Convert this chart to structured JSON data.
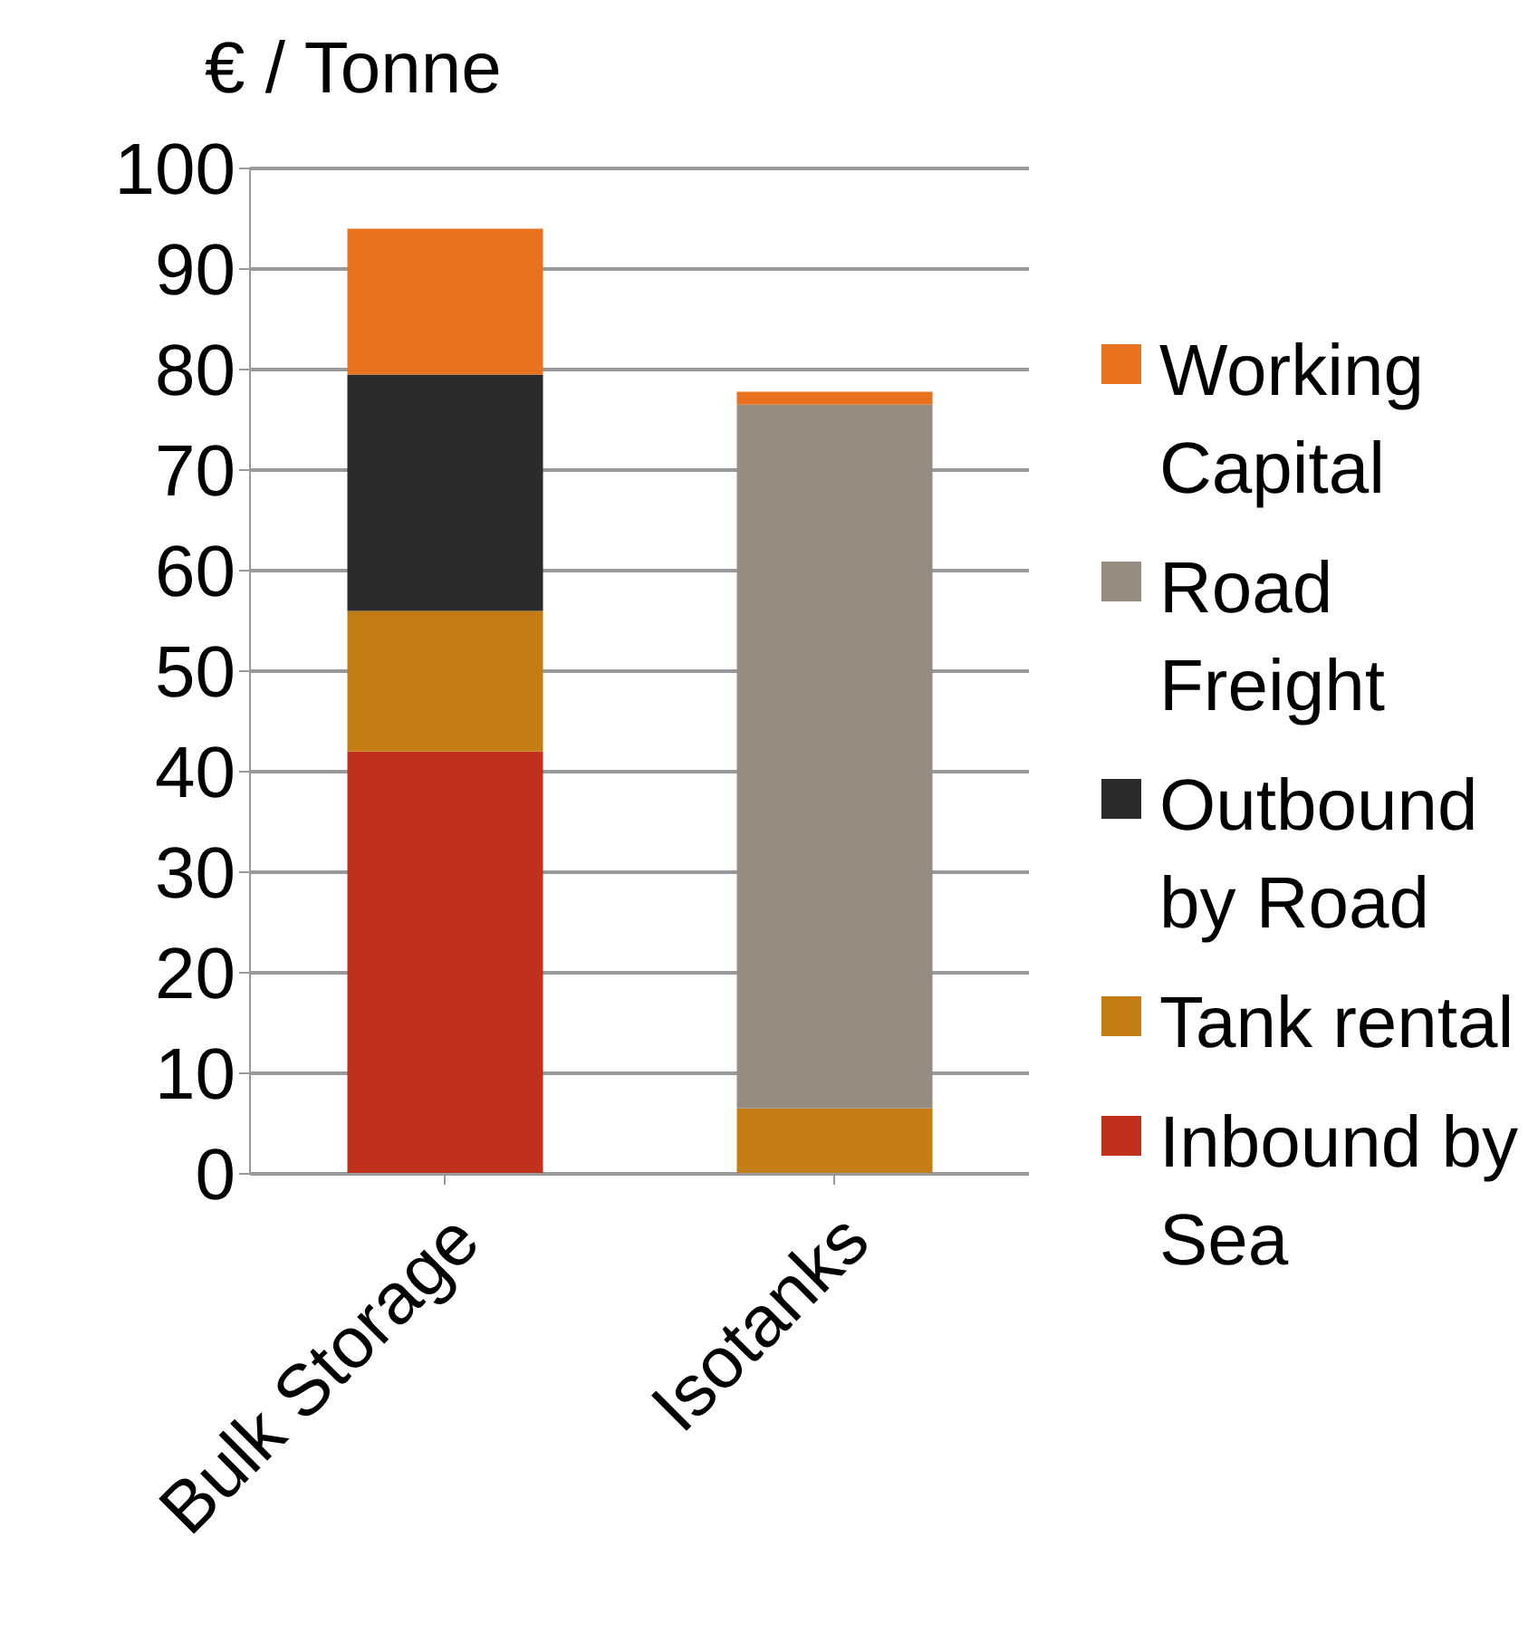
{
  "chart_data": {
    "type": "bar",
    "stacked": true,
    "ylabel": "€ / Tonne",
    "categories": [
      "Bulk Storage",
      "Isotanks"
    ],
    "series": [
      {
        "name": "Inbound by Sea",
        "color": "#c0301c",
        "values": [
          42,
          null
        ]
      },
      {
        "name": "Tank rental",
        "color": "#c47d14",
        "values": [
          14,
          6.5
        ]
      },
      {
        "name": "Outbound by Road",
        "color": "#2b2b2b",
        "values": [
          23.5,
          null
        ]
      },
      {
        "name": "Road Freight",
        "color": "#968c80",
        "values": [
          null,
          70
        ]
      },
      {
        "name": "Working Capital",
        "color": "#e8721e",
        "values": [
          14.5,
          1.3
        ]
      }
    ],
    "ylim": [
      0,
      100
    ],
    "yticks": [
      0,
      10,
      20,
      30,
      40,
      50,
      60,
      70,
      80,
      90,
      100
    ],
    "grid": "y",
    "legend": "right"
  }
}
